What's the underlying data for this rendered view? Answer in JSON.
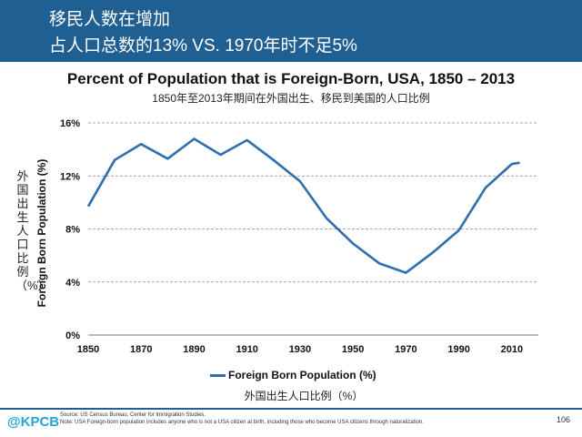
{
  "slide": {
    "title_line1": "移民人数在增加",
    "title_line2": "占人口总数的13% VS. 1970年时不足5%",
    "page_number": "106"
  },
  "footer": {
    "logo": "@KPCB",
    "source": "Source: US Census Bureau, Center for Immigration Studies.",
    "note": "Note: USA Foreign-born population includes anyone who is not a USA citizen at birth, including those who become USA citizens through naturalization."
  },
  "colors": {
    "header": "#1f5f92",
    "line": "#2f6fad",
    "logo": "#26a2d4"
  },
  "chart_data": {
    "type": "line",
    "title": "Percent of Population that is Foreign-Born, USA, 1850 – 2013",
    "subtitle": "1850年至2013年期间在外国出生、移民到美国的人口比例",
    "xlabel": "",
    "ylabel": "Foreign Born Population (%)",
    "ylabel_cn": "外国出生人口比例（%）",
    "x": [
      1850,
      1860,
      1870,
      1880,
      1890,
      1900,
      1910,
      1920,
      1930,
      1940,
      1950,
      1960,
      1970,
      1980,
      1990,
      2000,
      2010,
      2013
    ],
    "series": [
      {
        "name": "Foreign Born Population (%)",
        "name_cn": "外国出生人口比例（%）",
        "values": [
          9.7,
          13.2,
          14.4,
          13.3,
          14.8,
          13.6,
          14.7,
          13.2,
          11.6,
          8.8,
          6.9,
          5.4,
          4.7,
          6.2,
          7.9,
          11.1,
          12.9,
          13.0
        ]
      }
    ],
    "xlim": [
      1850,
      2020
    ],
    "ylim": [
      0,
      16
    ],
    "x_ticks": [
      "1850",
      "1870",
      "1890",
      "1910",
      "1930",
      "1950",
      "1970",
      "1990",
      "2010"
    ],
    "y_ticks": [
      "0%",
      "4%",
      "8%",
      "12%",
      "16%"
    ],
    "grid": true,
    "legend": "bottom-center"
  }
}
